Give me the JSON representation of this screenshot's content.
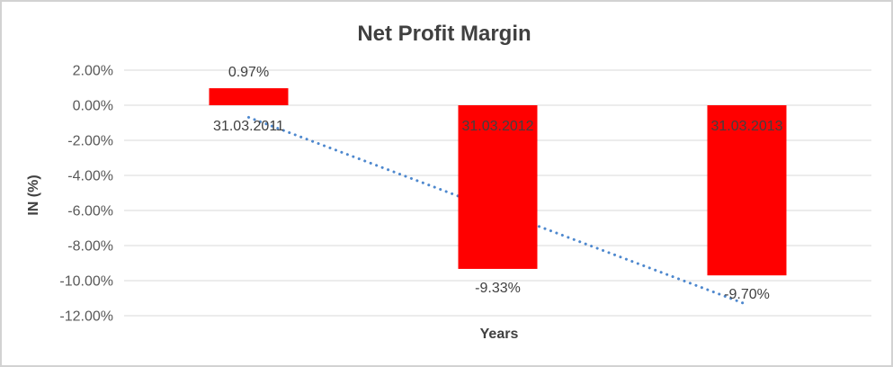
{
  "chart_data": {
    "type": "bar",
    "title": "Net Profit Margin",
    "xlabel": "Years",
    "ylabel": "IN (%)",
    "categories": [
      "31.03.2011",
      "31.03.2012",
      "31.03.2013"
    ],
    "values": [
      0.97,
      -9.33,
      -9.7
    ],
    "data_labels": [
      "0.97%",
      "-9.33%",
      "-9.70%"
    ],
    "ylim": [
      -12,
      2
    ],
    "ytick_step": 2,
    "ytick_labels": [
      "2.00%",
      "0.00%",
      "-2.00%",
      "-4.00%",
      "-6.00%",
      "-8.00%",
      "-10.00%",
      "-12.00%"
    ],
    "grid": true,
    "legend": "none",
    "bar_color": "#ff0000",
    "gridline_color": "#d9d9d9",
    "trendline": {
      "type": "linear",
      "style": "dotted",
      "color": "#4e88ce",
      "start_value": -0.69,
      "end_value": -11.36
    }
  }
}
